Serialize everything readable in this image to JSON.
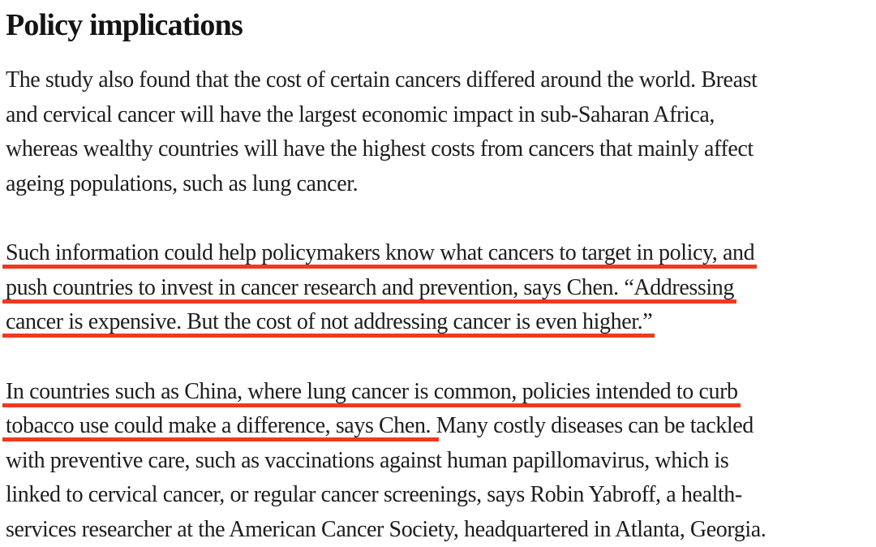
{
  "colors": {
    "bg": "#ffffff",
    "heading": "#141414",
    "text": "#1d1d1d",
    "red": "#ee3a21"
  },
  "article": {
    "heading": "Policy implications",
    "paragraphs": [
      {
        "lines": [
          {
            "segments": [
              {
                "text": "The study also found that the cost of certain cancers differed around the world. Breast",
                "underlined": false
              }
            ]
          },
          {
            "segments": [
              {
                "text": "and cervical cancer will have the largest economic impact in sub-Saharan Africa,",
                "underlined": false
              }
            ]
          },
          {
            "segments": [
              {
                "text": "whereas wealthy countries will have the highest costs from cancers that mainly affect",
                "underlined": false
              }
            ]
          },
          {
            "segments": [
              {
                "text": "ageing populations, such as lung cancer.",
                "underlined": false
              }
            ]
          }
        ]
      },
      {
        "lines": [
          {
            "segments": [
              {
                "text": "Such information could help policymakers know what cancers to target in policy, and",
                "underlined": true
              }
            ]
          },
          {
            "segments": [
              {
                "text": "push countries to invest in cancer research and prevention, says Chen. “Addressing",
                "underlined": true
              }
            ]
          },
          {
            "segments": [
              {
                "text": "cancer is expensive. But the cost of not addressing cancer is even higher.”",
                "underlined": true
              }
            ]
          }
        ]
      },
      {
        "lines": [
          {
            "segments": [
              {
                "text": "In countries such as China, where lung cancer is common, policies intended to curb",
                "underlined": true
              }
            ]
          },
          {
            "segments": [
              {
                "text": "tobacco use could make a difference, says Chen. ",
                "underlined": true
              },
              {
                "text": "Many costly diseases can be tackled",
                "underlined": false
              }
            ]
          },
          {
            "segments": [
              {
                "text": "with preventive care, such as vaccinations against human papillomavirus, which is",
                "underlined": false
              }
            ]
          },
          {
            "segments": [
              {
                "text": "linked to cervical cancer, or regular cancer screenings, says Robin Yabroff, a health-",
                "underlined": false
              }
            ]
          },
          {
            "segments": [
              {
                "text": "services researcher at the American Cancer Society, headquartered in Atlanta, Georgia.",
                "underlined": false
              }
            ]
          }
        ]
      }
    ]
  }
}
